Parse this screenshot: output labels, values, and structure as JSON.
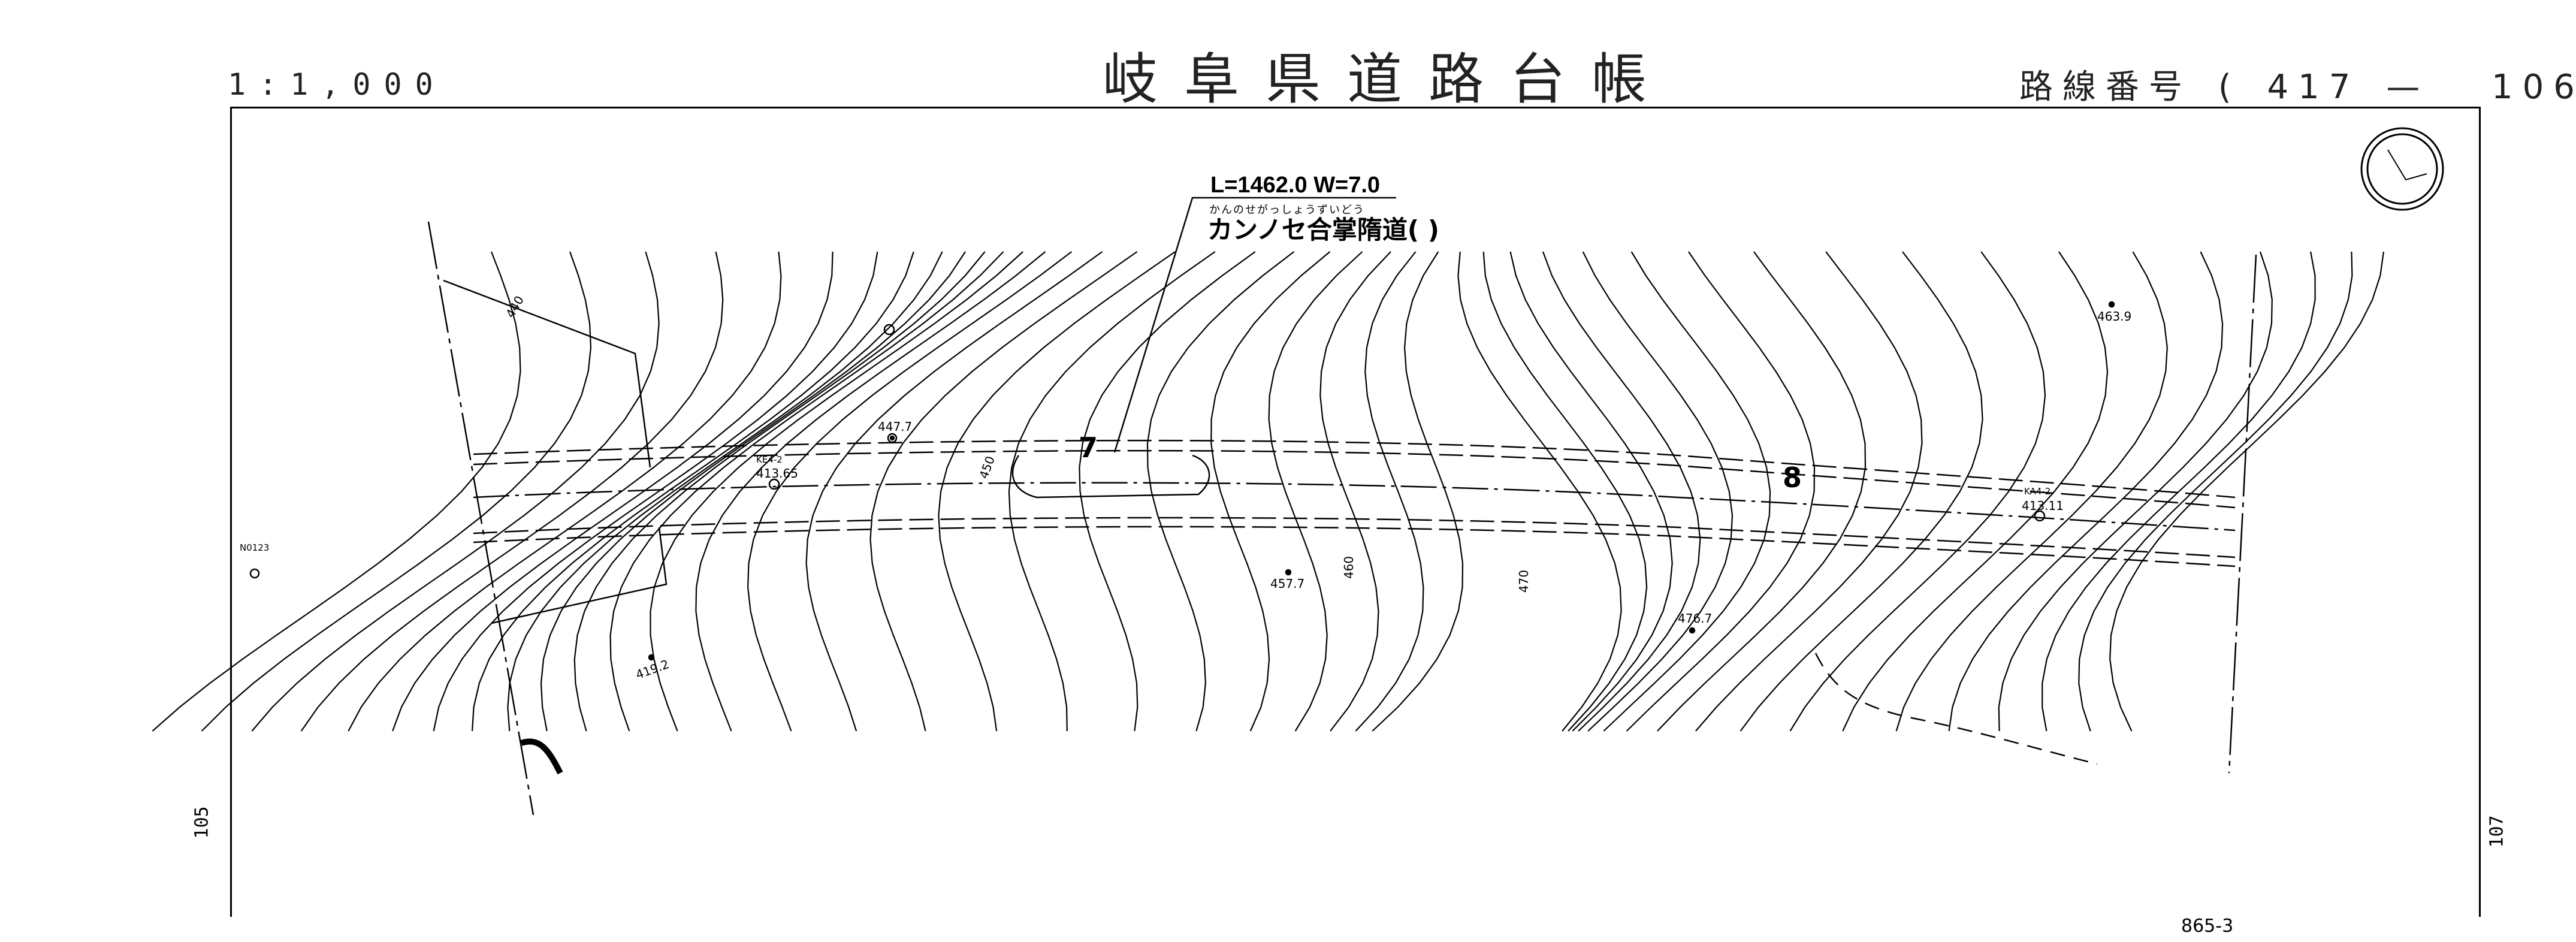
{
  "header": {
    "scale": "1:1,000",
    "title": "岐阜県道路台帳",
    "route_label": "路線番号",
    "route_open": "(",
    "route_number_1": "417",
    "route_dash": "—",
    "route_number_2": "106",
    "route_close": ")"
  },
  "road": {
    "dimensions": "L=1462.0  W=7.0",
    "furigana": "かんのせがっしょうずいどう",
    "name": "カンノセ合掌隋道(      )"
  },
  "points": {
    "p1": "447.7",
    "p2_id": "KE4-2",
    "p2": "413.65",
    "p3": "457.7",
    "p4": "476.7",
    "p5": "419.2",
    "p6": "463.9",
    "p7_id": "KA4-2",
    "p7": "413.11",
    "p8": "N0123"
  },
  "contours": {
    "c440": "440",
    "c450": "450",
    "c460": "460",
    "c470": "470"
  },
  "stations": {
    "s7": "7",
    "s8": "8"
  },
  "adjacent": {
    "left": "105",
    "right": "107",
    "bottom_parcel": "865-3"
  },
  "colors": {
    "ink": "#000000",
    "paper": "#ffffff"
  },
  "icons": [
    "north-arrow-icon",
    "benchmark-icon",
    "survey-point-icon"
  ]
}
